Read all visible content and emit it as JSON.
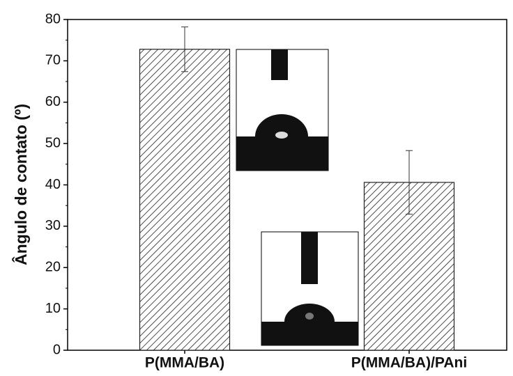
{
  "chart_data": {
    "type": "bar",
    "ylabel": "Ângulo de contato (º)",
    "categories": [
      "P(MMA/BA)",
      "P(MMA/BA)/PAni"
    ],
    "values": [
      72.8,
      40.6
    ],
    "errors": [
      5.4,
      7.7
    ],
    "color": "#222222",
    "ylim": [
      0,
      80
    ],
    "yticks": [
      0,
      10,
      20,
      30,
      40,
      50,
      60,
      70,
      80
    ]
  }
}
